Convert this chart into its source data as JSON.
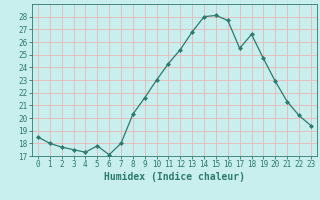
{
  "xlabel": "Humidex (Indice chaleur)",
  "x": [
    0,
    1,
    2,
    3,
    4,
    5,
    6,
    7,
    8,
    9,
    10,
    11,
    12,
    13,
    14,
    15,
    16,
    17,
    18,
    19,
    20,
    21,
    22,
    23
  ],
  "y": [
    18.5,
    18.0,
    17.7,
    17.5,
    17.3,
    17.8,
    17.1,
    18.0,
    20.3,
    21.6,
    23.0,
    24.3,
    25.4,
    26.8,
    28.0,
    28.1,
    27.7,
    25.5,
    26.6,
    24.7,
    22.9,
    21.3,
    20.2,
    19.4
  ],
  "line_color": "#2d7a6e",
  "marker": "D",
  "marker_size": 2.0,
  "bg_color": "#c8eeee",
  "grid_color": "#e8b8b8",
  "ylim": [
    17,
    29
  ],
  "yticks": [
    17,
    18,
    19,
    20,
    21,
    22,
    23,
    24,
    25,
    26,
    27,
    28
  ],
  "xlim": [
    -0.5,
    23.5
  ],
  "xticks": [
    0,
    1,
    2,
    3,
    4,
    5,
    6,
    7,
    8,
    9,
    10,
    11,
    12,
    13,
    14,
    15,
    16,
    17,
    18,
    19,
    20,
    21,
    22,
    23
  ],
  "tick_fontsize": 5.5,
  "label_fontsize": 7.0
}
